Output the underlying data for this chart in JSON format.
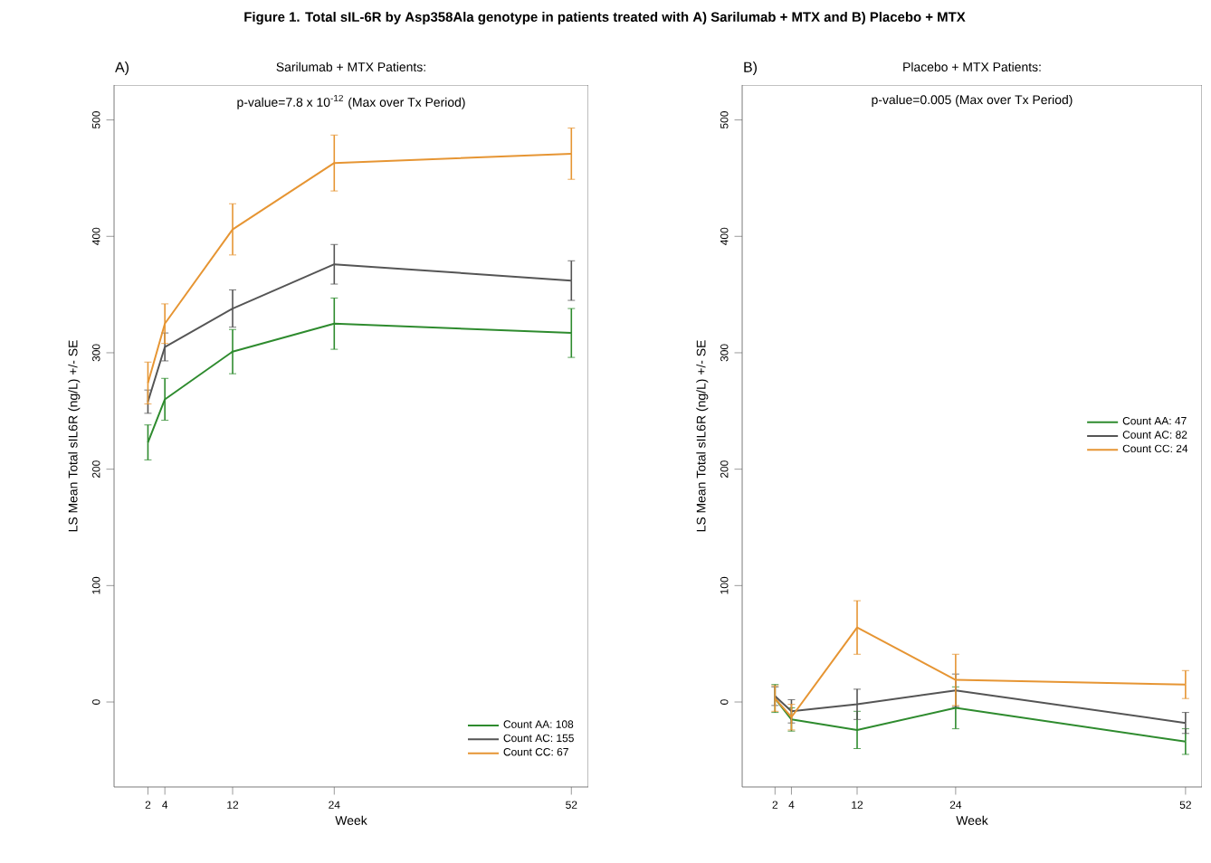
{
  "chart_data": [
    {
      "type": "line",
      "title": "Sarilumab + MTX Patients:",
      "subtitle": "p-value=7.8 x 10$^{-12}$ (Max over Tx Period)",
      "annotations": [
        "Figure 1. Total sIL-6R by Asp358Ala genotype in patients treated with A) Sarilumab + MTX and B) Placebo + MTX",
        "A)"
      ],
      "xlabel": "Week",
      "ylabel": "LS Mean Total sIL6R (ng/L) +/- SE",
      "x": [
        2,
        4,
        12,
        24,
        52
      ],
      "xlim": [
        -2,
        54
      ],
      "ylim": [
        -73,
        530
      ],
      "xticks": [
        2,
        4,
        12,
        24,
        52
      ],
      "yticks": [
        0,
        100,
        200,
        300,
        400,
        500
      ],
      "legend": "bottom right",
      "grid": false,
      "marker": "none",
      "series": [
        {
          "name": "Count AA: 108",
          "color": "#2e8b2e",
          "values": [
            223,
            260,
            301,
            325,
            317
          ],
          "errors": [
            15,
            18,
            19,
            22,
            21
          ]
        },
        {
          "name": "Count AC: 155",
          "color": "#555555",
          "values": [
            258,
            305,
            338,
            376,
            362
          ],
          "errors": [
            10,
            12,
            16,
            17,
            17
          ]
        },
        {
          "name": "Count CC: 67",
          "color": "#e69533",
          "values": [
            274,
            325,
            406,
            463,
            471
          ],
          "errors": [
            18,
            17,
            22,
            24,
            22
          ]
        }
      ]
    },
    {
      "type": "line",
      "title": "Placebo + MTX Patients:",
      "subtitle": "p-value=0.005  (Max over Tx Period)",
      "annotations": [
        "B)"
      ],
      "xlabel": "Week",
      "ylabel": "LS Mean Total sIL6R (ng/L)  +/- SE",
      "x": [
        2,
        4,
        12,
        24,
        52
      ],
      "xlim": [
        -2,
        54
      ],
      "ylim": [
        -73,
        530
      ],
      "xticks": [
        2,
        4,
        12,
        24,
        52
      ],
      "yticks": [
        0,
        100,
        200,
        300,
        400,
        500
      ],
      "legend": "right",
      "grid": false,
      "marker": "none",
      "series": [
        {
          "name": "Count AA: 47",
          "color": "#2e8b2e",
          "values": [
            3,
            -15,
            -24,
            -5,
            -34
          ],
          "errors": [
            12,
            10,
            16,
            18,
            11
          ]
        },
        {
          "name": "Count AC: 82",
          "color": "#555555",
          "values": [
            5,
            -8,
            -2,
            10,
            -18
          ],
          "errors": [
            8,
            10,
            13,
            14,
            9
          ]
        },
        {
          "name": "Count CC: 24",
          "color": "#e69533",
          "values": [
            3,
            -13,
            64,
            19,
            15
          ],
          "errors": [
            11,
            11,
            23,
            22,
            12
          ]
        }
      ]
    }
  ]
}
